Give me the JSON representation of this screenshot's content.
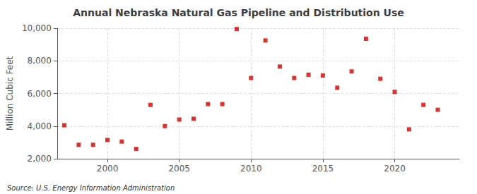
{
  "chart_data": {
    "type": "scatter",
    "title": "Annual Nebraska Natural Gas Pipeline and Distribution Use",
    "ylabel": "Million Cubic Feet",
    "annotations": [
      "Source: U.S. Energy Information Administration"
    ],
    "x": [
      1997,
      1998,
      1999,
      2000,
      2001,
      2002,
      2003,
      2004,
      2005,
      2006,
      2007,
      2008,
      2009,
      2010,
      2011,
      2012,
      2013,
      2014,
      2015,
      2016,
      2017,
      2018,
      2019,
      2020,
      2021,
      2022,
      2023
    ],
    "values": [
      4050,
      2850,
      2850,
      3150,
      3050,
      2600,
      5300,
      4000,
      4400,
      4450,
      5350,
      5350,
      9950,
      6950,
      9250,
      7650,
      6950,
      7150,
      7100,
      6350,
      7350,
      9350,
      6900,
      6100,
      3800,
      5300,
      5000
    ],
    "color": "#cc0000",
    "marker": "square",
    "xlim": [
      1996.5,
      2024.5
    ],
    "xticks": [
      2000,
      2005,
      2010,
      2015,
      2020
    ],
    "ylim": [
      2000,
      10000
    ],
    "yticks": [
      {
        "value": 2000,
        "label": "2,000"
      },
      {
        "value": 4000,
        "label": "4,000"
      },
      {
        "value": 6000,
        "label": "6,000"
      },
      {
        "value": 8000,
        "label": "8,000"
      },
      {
        "value": 10000,
        "label": "10,000"
      }
    ],
    "grid": true
  }
}
